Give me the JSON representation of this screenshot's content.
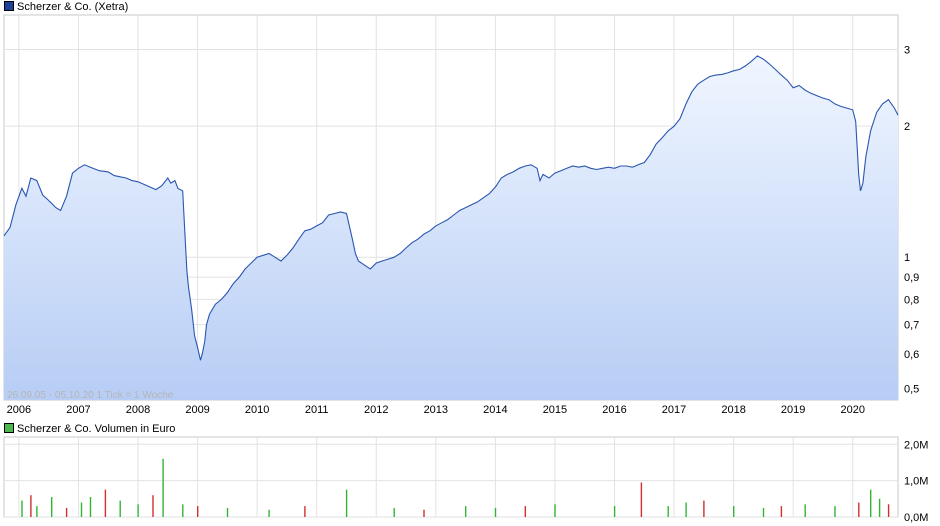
{
  "price_chart": {
    "legend": "Scherzer & Co. (Xetra)",
    "legend_color": "#1f3f99",
    "line_color": "#2a56b0",
    "fill_top_color": "#f0f6ff",
    "fill_bottom_color": "#b7cdf5",
    "caption": "26.09.05 - 05.10.20   1 Tick = 1 Woche"
  },
  "volume_chart": {
    "legend": "Scherzer & Co. Volumen in Euro",
    "legend_color": "#4cb84c",
    "up_color": "#33b533",
    "down_color": "#d03030"
  },
  "chart_data": [
    {
      "type": "line",
      "title": "Scherzer & Co. (Xetra)",
      "scale": "log",
      "grid": true,
      "xlim": [
        2005.75,
        2020.76
      ],
      "ylim": [
        0.47,
        3.6
      ],
      "x_ticks": [
        "2006",
        "2007",
        "2008",
        "2009",
        "2010",
        "2011",
        "2012",
        "2013",
        "2014",
        "2015",
        "2016",
        "2017",
        "2018",
        "2019",
        "2020"
      ],
      "y_ticks": [
        "0,5",
        "0,6",
        "0,7",
        "0,8",
        "0,9",
        "1",
        "2",
        "3"
      ],
      "y_tick_values": [
        0.5,
        0.6,
        0.7,
        0.8,
        0.9,
        1,
        2,
        3
      ],
      "series": [
        {
          "name": "Scherzer & Co. (Xetra)",
          "x": [
            2005.75,
            2005.85,
            2005.95,
            2006.05,
            2006.12,
            2006.2,
            2006.3,
            2006.4,
            2006.5,
            2006.55,
            2006.62,
            2006.7,
            2006.8,
            2006.9,
            2007.0,
            2007.1,
            2007.2,
            2007.35,
            2007.5,
            2007.6,
            2007.7,
            2007.8,
            2007.9,
            2008.0,
            2008.1,
            2008.2,
            2008.3,
            2008.4,
            2008.5,
            2008.55,
            2008.62,
            2008.67,
            2008.75,
            2008.78,
            2008.82,
            2008.85,
            2008.9,
            2008.95,
            2009.0,
            2009.05,
            2009.08,
            2009.12,
            2009.15,
            2009.2,
            2009.3,
            2009.4,
            2009.5,
            2009.6,
            2009.7,
            2009.8,
            2009.9,
            2010.0,
            2010.1,
            2010.2,
            2010.3,
            2010.4,
            2010.5,
            2010.6,
            2010.7,
            2010.8,
            2010.9,
            2011.0,
            2011.1,
            2011.2,
            2011.3,
            2011.4,
            2011.5,
            2011.6,
            2011.65,
            2011.7,
            2011.8,
            2011.9,
            2012.0,
            2012.1,
            2012.2,
            2012.3,
            2012.4,
            2012.5,
            2012.6,
            2012.7,
            2012.8,
            2012.9,
            2013.0,
            2013.1,
            2013.2,
            2013.3,
            2013.4,
            2013.5,
            2013.6,
            2013.7,
            2013.8,
            2013.9,
            2014.0,
            2014.1,
            2014.2,
            2014.3,
            2014.4,
            2014.5,
            2014.6,
            2014.7,
            2014.75,
            2014.8,
            2014.9,
            2015.0,
            2015.1,
            2015.2,
            2015.3,
            2015.4,
            2015.5,
            2015.6,
            2015.7,
            2015.8,
            2015.9,
            2016.0,
            2016.1,
            2016.2,
            2016.3,
            2016.4,
            2016.5,
            2016.6,
            2016.7,
            2016.8,
            2016.9,
            2017.0,
            2017.1,
            2017.2,
            2017.3,
            2017.4,
            2017.5,
            2017.6,
            2017.7,
            2017.8,
            2017.9,
            2018.0,
            2018.1,
            2018.2,
            2018.3,
            2018.4,
            2018.5,
            2018.6,
            2018.7,
            2018.8,
            2018.9,
            2019.0,
            2019.1,
            2019.2,
            2019.3,
            2019.4,
            2019.5,
            2019.6,
            2019.7,
            2019.8,
            2019.9,
            2020.0,
            2020.05,
            2020.1,
            2020.13,
            2020.17,
            2020.22,
            2020.3,
            2020.4,
            2020.5,
            2020.6,
            2020.7,
            2020.76
          ],
          "values": [
            1.12,
            1.17,
            1.32,
            1.44,
            1.38,
            1.52,
            1.5,
            1.39,
            1.35,
            1.33,
            1.3,
            1.28,
            1.38,
            1.56,
            1.6,
            1.63,
            1.61,
            1.58,
            1.57,
            1.54,
            1.53,
            1.52,
            1.5,
            1.49,
            1.47,
            1.45,
            1.43,
            1.46,
            1.52,
            1.48,
            1.5,
            1.44,
            1.42,
            1.18,
            0.93,
            0.85,
            0.76,
            0.66,
            0.62,
            0.58,
            0.6,
            0.64,
            0.7,
            0.74,
            0.78,
            0.8,
            0.83,
            0.87,
            0.9,
            0.94,
            0.97,
            1.0,
            1.01,
            1.02,
            1.0,
            0.98,
            1.01,
            1.05,
            1.1,
            1.15,
            1.16,
            1.18,
            1.2,
            1.25,
            1.26,
            1.27,
            1.26,
            1.1,
            1.02,
            0.98,
            0.96,
            0.94,
            0.97,
            0.98,
            0.99,
            1.0,
            1.02,
            1.05,
            1.08,
            1.1,
            1.13,
            1.15,
            1.18,
            1.2,
            1.22,
            1.25,
            1.28,
            1.3,
            1.32,
            1.34,
            1.37,
            1.4,
            1.45,
            1.52,
            1.55,
            1.57,
            1.6,
            1.62,
            1.63,
            1.6,
            1.5,
            1.55,
            1.52,
            1.56,
            1.58,
            1.6,
            1.62,
            1.61,
            1.62,
            1.6,
            1.59,
            1.6,
            1.61,
            1.6,
            1.62,
            1.62,
            1.61,
            1.63,
            1.65,
            1.72,
            1.82,
            1.88,
            1.95,
            2.0,
            2.08,
            2.25,
            2.4,
            2.5,
            2.55,
            2.6,
            2.62,
            2.63,
            2.65,
            2.68,
            2.7,
            2.75,
            2.82,
            2.9,
            2.85,
            2.78,
            2.7,
            2.62,
            2.55,
            2.45,
            2.48,
            2.42,
            2.38,
            2.35,
            2.32,
            2.3,
            2.25,
            2.22,
            2.2,
            2.18,
            2.05,
            1.55,
            1.42,
            1.48,
            1.7,
            1.95,
            2.15,
            2.25,
            2.3,
            2.2,
            2.12
          ]
        }
      ]
    },
    {
      "type": "bar",
      "title": "Scherzer & Co. Volumen in Euro",
      "grid": true,
      "xlim": [
        2005.75,
        2020.76
      ],
      "ylim": [
        0,
        2.2
      ],
      "y_unit": "Mio. Euro",
      "y_ticks": [
        "0,0M",
        "1,0M",
        "2,0M"
      ],
      "y_tick_values": [
        0,
        1,
        2
      ],
      "series": [
        {
          "name": "Scherzer & Co. Volumen in Euro",
          "x": [
            2006.05,
            2006.2,
            2006.3,
            2006.55,
            2006.8,
            2007.05,
            2007.2,
            2007.45,
            2007.7,
            2008.0,
            2008.25,
            2008.42,
            2008.75,
            2009.0,
            2009.5,
            2010.2,
            2010.8,
            2011.5,
            2012.3,
            2012.8,
            2013.5,
            2014.0,
            2014.5,
            2015.0,
            2016.0,
            2016.45,
            2016.9,
            2017.2,
            2017.5,
            2018.0,
            2018.5,
            2018.8,
            2019.2,
            2019.7,
            2020.1,
            2020.3,
            2020.45,
            2020.6
          ],
          "values": [
            0.45,
            0.6,
            0.3,
            0.55,
            0.25,
            0.4,
            0.55,
            0.75,
            0.45,
            0.35,
            0.6,
            1.6,
            0.35,
            0.3,
            0.25,
            0.2,
            0.3,
            0.75,
            0.25,
            0.2,
            0.3,
            0.25,
            0.3,
            0.35,
            0.3,
            0.95,
            0.3,
            0.4,
            0.45,
            0.3,
            0.25,
            0.3,
            0.35,
            0.3,
            0.4,
            0.75,
            0.5,
            0.35
          ]
        }
      ]
    }
  ]
}
